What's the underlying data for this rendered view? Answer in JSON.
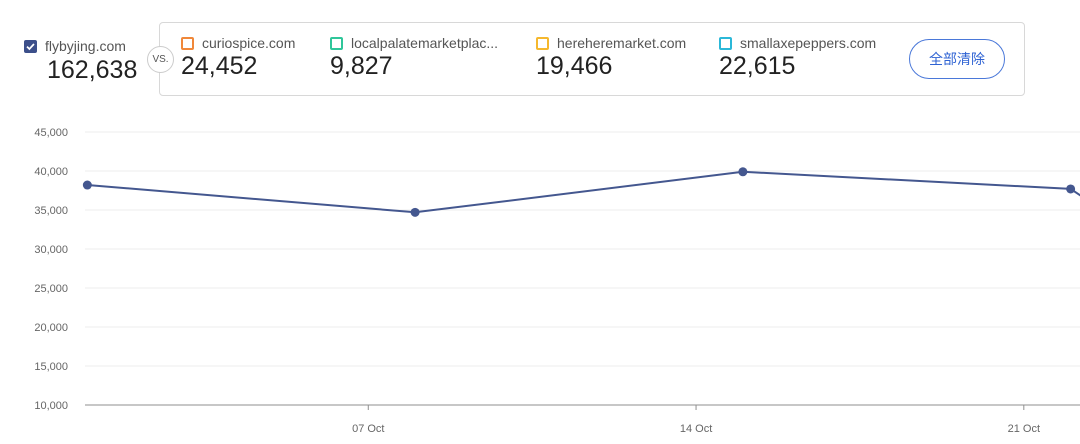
{
  "main_site": {
    "name": "flybyjing.com",
    "value": "162,638",
    "checked": true,
    "color": "#3c4f8a"
  },
  "vs_label": "VS.",
  "competitors": [
    {
      "name": "curiospice.com",
      "value": "24,452",
      "color": "#f0883a"
    },
    {
      "name": "localpalatemarketplac...",
      "value": "9,827",
      "color": "#2fc69a"
    },
    {
      "name": "hereheremarket.com",
      "value": "19,466",
      "color": "#f5b82e"
    },
    {
      "name": "smallaxepeppers.com",
      "value": "22,615",
      "color": "#2bb8d8"
    }
  ],
  "clear_button_label": "全部清除",
  "chart_data": {
    "type": "line",
    "yticks": [
      "10,000",
      "15,000",
      "20,000",
      "25,000",
      "30,000",
      "35,000",
      "40,000",
      "45,000"
    ],
    "ylim": [
      10000,
      45000
    ],
    "xticks": [
      {
        "label": "07 Oct",
        "x": 7
      },
      {
        "label": "14 Oct",
        "x": 14
      },
      {
        "label": "21 Oct",
        "x": 21
      }
    ],
    "xlim": [
      0.95,
      22.2
    ],
    "grid": true,
    "series": [
      {
        "color": "#44578f",
        "points": [
          {
            "x": 1,
            "y": 38200
          },
          {
            "x": 8,
            "y": 34700
          },
          {
            "x": 15,
            "y": 39900
          },
          {
            "x": 22,
            "y": 37700
          },
          {
            "x": 22.3,
            "y": 36500
          }
        ]
      }
    ]
  }
}
